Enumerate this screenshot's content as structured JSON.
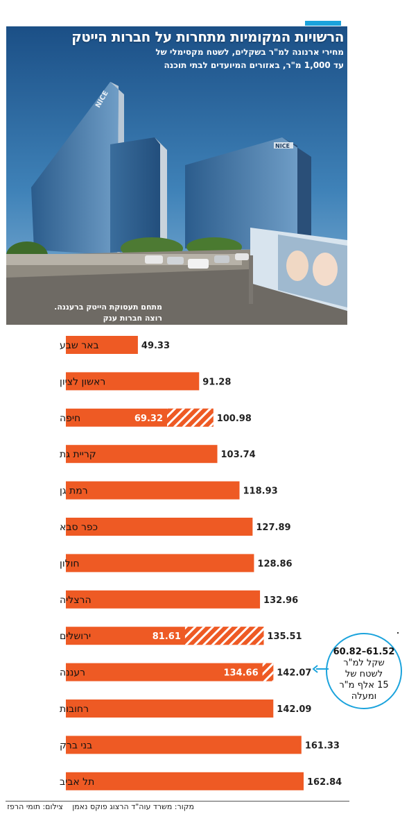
{
  "header": {
    "title": "הרשויות המקומיות מתחרות על חברות הייטק",
    "subtitle_line1": "מחירי ארנונה למ\"ר בשקלים, לשטח מקסימלי של",
    "subtitle_line2": "עד 1,000 מ\"ר, באזורים המיועדים לבתי תוכנה"
  },
  "photo": {
    "sign_1": "NICE",
    "sign_2": "NICE",
    "caption_line1": "מתחם תעסוקת הייטק ברעננה.",
    "caption_line2": "רוצה חברות ענק"
  },
  "chart_data": {
    "type": "bar",
    "orientation": "horizontal",
    "title": "",
    "xlabel": "",
    "ylabel": "",
    "xlim": [
      0,
      162.84
    ],
    "categories": [
      "באר שבע",
      "ראשון לציון",
      "חיפה",
      "קריית גת",
      "רמת גן",
      "כפר סבא",
      "חולון",
      "הרצליה",
      "ירושלים",
      "רעננה",
      "רחובות",
      "בני ברק",
      "תל אביב"
    ],
    "values": [
      49.33,
      91.28,
      100.98,
      103.74,
      118.93,
      127.89,
      128.86,
      132.96,
      135.51,
      142.07,
      142.09,
      161.33,
      162.84
    ],
    "value_labels": [
      "49.33",
      "91.28",
      "100.98",
      "103.74",
      "118.93",
      "127.89",
      "128.86",
      "132.96",
      "135.51",
      "142.07",
      "142.09",
      "161.33",
      "162.84"
    ],
    "large_area_values": [
      null,
      null,
      69.32,
      null,
      null,
      null,
      null,
      null,
      81.61,
      134.66,
      null,
      null,
      null
    ],
    "large_area_labels": [
      "",
      "",
      "69.32",
      "",
      "",
      "",
      "",
      "",
      "81.61",
      "134.66",
      "",
      "",
      ""
    ],
    "bar_color": "#ee5a24",
    "grid": false
  },
  "callout": {
    "range": "60.82–61.52",
    "line2": "שקל למ\"ר",
    "line3": "לשטח של",
    "line4": "15 אלף מ\"ר",
    "line5": "ומעלה",
    "color": "#1ba3dc"
  },
  "footer": {
    "source": "מקור: משרד עוה\"ד הרצוג פוקס נאמן",
    "photo_credit": "צילום: תומי הרפז"
  }
}
